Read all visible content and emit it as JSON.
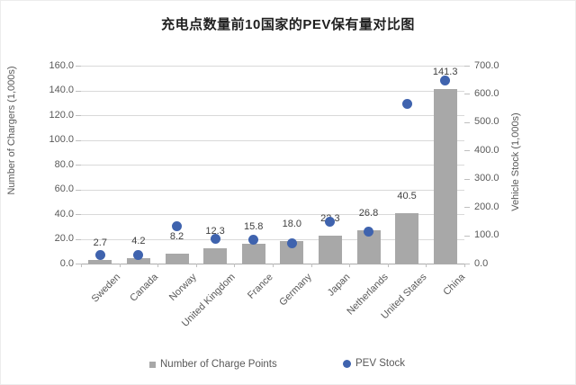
{
  "title": "充电点数量前10国家的PEV保有量对比图",
  "chart_data": {
    "type": "bar",
    "subtype": "combo-bar-scatter",
    "categories": [
      "Sweden",
      "Canada",
      "Norway",
      "United Kingdom",
      "France",
      "Germany",
      "Japan",
      "Netherlands",
      "United States",
      "China"
    ],
    "series": [
      {
        "name": "Number of Charge Points",
        "type": "bar",
        "axis": "left",
        "values": [
          2.7,
          4.2,
          8.2,
          12.3,
          15.8,
          18.0,
          22.3,
          26.8,
          40.5,
          141.3
        ],
        "labels": [
          "2.7",
          "4.2",
          "8.2",
          "12.3",
          "15.8",
          "18.0",
          "22.3",
          "26.8",
          "40.5",
          "141.3"
        ],
        "color": "#a8a8a8"
      },
      {
        "name": "PEV Stock",
        "type": "scatter",
        "axis": "right",
        "values": [
          30,
          29,
          133,
          86,
          84,
          73,
          148,
          112,
          564,
          649
        ],
        "color": "#3f63ae"
      }
    ],
    "left_axis": {
      "label": "Number of Chargers (1,000s)",
      "min": 0,
      "max": 160,
      "step": 20,
      "tick_format": "0.0"
    },
    "right_axis": {
      "label": "Vehicle Stock (1,000s)",
      "min": 0,
      "max": 700,
      "step": 100,
      "tick_format": "0.0"
    },
    "grid": true,
    "legend_position": "bottom",
    "colors": {
      "grid": "#d9d9d9",
      "baseline": "#ababab",
      "tick_text": "#595959",
      "data_label_text": "#3f3f3f"
    }
  }
}
